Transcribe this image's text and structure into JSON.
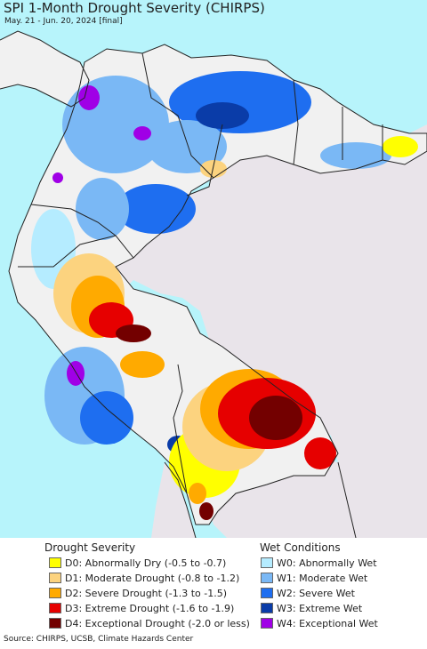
{
  "title": "SPI 1-Month Drought Severity (CHIRPS)",
  "subtitle": "May. 21 - Jun. 20, 2024 [final]",
  "colors": {
    "ocean": "#b7f4fb",
    "land": "#f1f1f1",
    "outside_land": "#e9e4ea",
    "border": "#222222"
  },
  "legend": {
    "drought": {
      "heading": "Drought Severity",
      "items": [
        {
          "label": "D0: Abnormally Dry (-0.5 to -0.7)",
          "color": "#ffff00"
        },
        {
          "label": "D1: Moderate Drought (-0.8 to -1.2)",
          "color": "#fcd37f"
        },
        {
          "label": "D2: Severe Drought (-1.3 to -1.5)",
          "color": "#ffaa00"
        },
        {
          "label": "D3: Extreme Drought (-1.6 to -1.9)",
          "color": "#e60000"
        },
        {
          "label": "D4: Exceptional Drought (-2.0 or less)",
          "color": "#730000"
        }
      ]
    },
    "wet": {
      "heading": "Wet Conditions",
      "items": [
        {
          "label": "W0: Abnormally Wet",
          "color": "#b5ecff"
        },
        {
          "label": "W1: Moderate Wet",
          "color": "#7ab8f5"
        },
        {
          "label": "W2: Severe Wet",
          "color": "#1e6ef0"
        },
        {
          "label": "W3: Extreme Wet",
          "color": "#0a3ca8"
        },
        {
          "label": "W4: Exceptional Wet",
          "color": "#a000e6"
        }
      ]
    }
  },
  "source": "Source: CHIRPS, UCSB, Climate Hazards Center"
}
